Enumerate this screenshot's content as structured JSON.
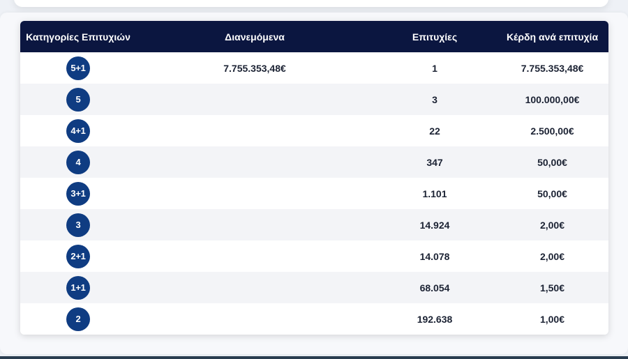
{
  "table": {
    "headers": {
      "category": "Κατηγορίες Επιτυχιών",
      "distributed": "Διανεμόμενα",
      "winners": "Επιτυχίες",
      "prize_per_winner": "Κέρδη ανά επιτυχία"
    },
    "rows": [
      {
        "category": "5+1",
        "distributed": "7.755.353,48€",
        "winners": "1",
        "prize": "7.755.353,48€"
      },
      {
        "category": "5",
        "distributed": "",
        "winners": "3",
        "prize": "100.000,00€"
      },
      {
        "category": "4+1",
        "distributed": "",
        "winners": "22",
        "prize": "2.500,00€"
      },
      {
        "category": "4",
        "distributed": "",
        "winners": "347",
        "prize": "50,00€"
      },
      {
        "category": "3+1",
        "distributed": "",
        "winners": "1.101",
        "prize": "50,00€"
      },
      {
        "category": "3",
        "distributed": "",
        "winners": "14.924",
        "prize": "2,00€"
      },
      {
        "category": "2+1",
        "distributed": "",
        "winners": "14.078",
        "prize": "2,00€"
      },
      {
        "category": "1+1",
        "distributed": "",
        "winners": "68.054",
        "prize": "1,50€"
      },
      {
        "category": "2",
        "distributed": "",
        "winners": "192.638",
        "prize": "1,00€"
      }
    ]
  },
  "colors": {
    "header_bg": "#0b1640",
    "badge_bg": "#0f3c82",
    "row_alt_bg": "#f3f4f7"
  }
}
